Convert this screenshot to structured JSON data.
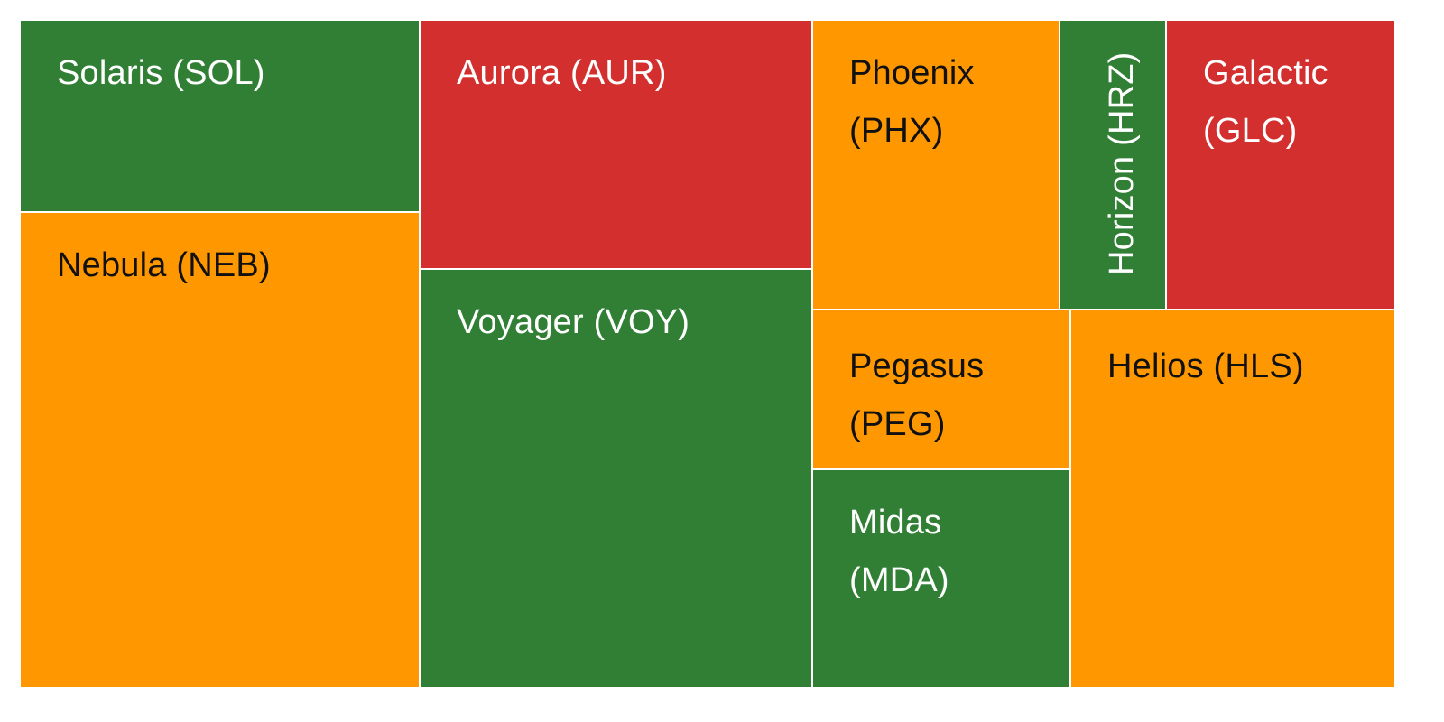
{
  "colors": {
    "green": "#317F35",
    "red": "#D32F2F",
    "orange": "#FF9800",
    "border": "#FFFFFF"
  },
  "chart_data": {
    "type": "treemap",
    "title": "",
    "legend": "none",
    "tiles": [
      {
        "name": "Solaris (SOL)",
        "color": "#317F35",
        "text_color": "#FFFFFF",
        "orientation": "horizontal"
      },
      {
        "name": "Nebula (NEB)",
        "color": "#FF9800",
        "text_color": "#111111",
        "orientation": "horizontal"
      },
      {
        "name": "Aurora (AUR)",
        "color": "#D32F2F",
        "text_color": "#FFFFFF",
        "orientation": "horizontal"
      },
      {
        "name": "Voyager (VOY)",
        "color": "#317F35",
        "text_color": "#FFFFFF",
        "orientation": "horizontal"
      },
      {
        "name": "Phoenix (PHX)",
        "color": "#FF9800",
        "text_color": "#111111",
        "orientation": "horizontal"
      },
      {
        "name": "Horizon (HRZ)",
        "color": "#317F35",
        "text_color": "#FFFFFF",
        "orientation": "vertical"
      },
      {
        "name": "Galactic (GLC)",
        "color": "#D32F2F",
        "text_color": "#FFFFFF",
        "orientation": "horizontal"
      },
      {
        "name": "Pegasus (PEG)",
        "color": "#FF9800",
        "text_color": "#111111",
        "orientation": "horizontal"
      },
      {
        "name": "Helios (HLS)",
        "color": "#FF9800",
        "text_color": "#111111",
        "orientation": "horizontal"
      },
      {
        "name": "Midas (MDA)",
        "color": "#317F35",
        "text_color": "#FFFFFF",
        "orientation": "horizontal"
      }
    ]
  }
}
